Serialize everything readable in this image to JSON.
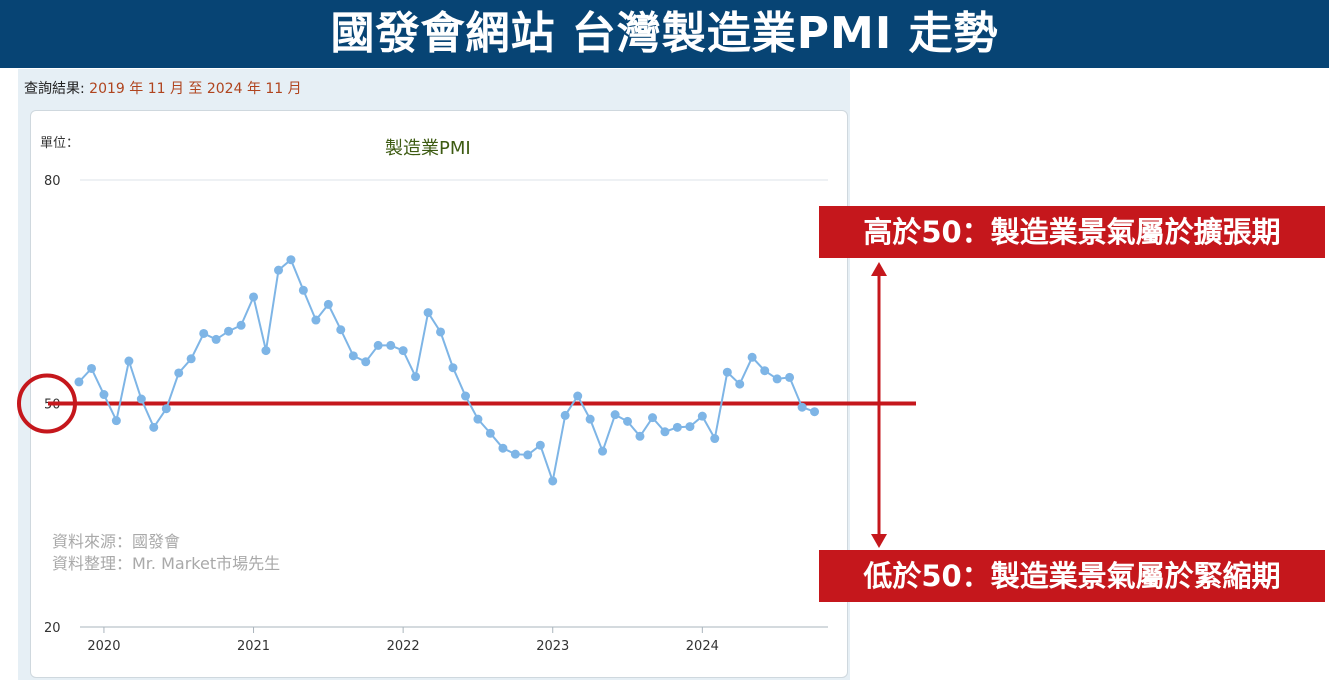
{
  "banner": {
    "title": "國發會網站  台灣製造業PMI 走勢"
  },
  "query": {
    "label": "查詢結果:",
    "value": "2019 年 11 月 至 2024 年 11 月"
  },
  "unit_label": "單位：",
  "source": {
    "line1": "資料來源：國發會",
    "line2": "資料整理：Mr. Market市場先生"
  },
  "notes": {
    "above": "高於50：製造業景氣屬於擴張期",
    "below": "低於50：製造業景氣屬於緊縮期"
  },
  "colors": {
    "banner": "#074474",
    "series": "#7eb5e6",
    "highlight": "#c5171c"
  },
  "chart_data": {
    "type": "line",
    "title": "製造業PMI",
    "ylim": [
      20,
      80
    ],
    "yticks": [
      {
        "value": 80,
        "label": "80"
      },
      {
        "value": 50,
        "label": "50"
      },
      {
        "value": 20,
        "label": "20"
      }
    ],
    "xlim": [
      2019.84,
      2024.84
    ],
    "xticks": [
      {
        "value": 2020,
        "label": "2020"
      },
      {
        "value": 2021,
        "label": "2021"
      },
      {
        "value": 2022,
        "label": "2022"
      },
      {
        "value": 2023,
        "label": "2023"
      },
      {
        "value": 2024,
        "label": "2024"
      }
    ],
    "reference_line": 50,
    "grid": true,
    "series": [
      {
        "x": [
          2019.833,
          2019.917,
          2020.0,
          2020.083,
          2020.167,
          2020.25,
          2020.333,
          2020.417,
          2020.5,
          2020.583,
          2020.667,
          2020.75,
          2020.833,
          2020.917,
          2021.0,
          2021.083,
          2021.167,
          2021.25,
          2021.333,
          2021.417,
          2021.5,
          2021.583,
          2021.667,
          2021.75,
          2021.833,
          2021.917,
          2022.0,
          2022.083,
          2022.167,
          2022.25,
          2022.333,
          2022.417,
          2022.5,
          2022.583,
          2022.667,
          2022.75,
          2022.833,
          2022.917,
          2023.0,
          2023.083,
          2023.167,
          2023.25,
          2023.333,
          2023.417,
          2023.5,
          2023.583,
          2023.667,
          2023.75,
          2023.833,
          2023.917,
          2024.0,
          2024.083,
          2024.167,
          2024.25,
          2024.333,
          2024.417,
          2024.5,
          2024.583,
          2024.667,
          2024.75
        ],
        "values": [
          52.9,
          54.7,
          51.2,
          47.7,
          55.7,
          50.6,
          46.8,
          49.3,
          54.1,
          56.0,
          59.4,
          58.6,
          59.7,
          60.5,
          64.3,
          57.1,
          67.9,
          69.3,
          65.2,
          61.2,
          63.3,
          59.9,
          56.4,
          55.6,
          57.8,
          57.8,
          57.1,
          53.6,
          62.2,
          59.6,
          54.8,
          51.0,
          47.9,
          46.0,
          44.0,
          43.2,
          43.1,
          44.4,
          39.6,
          48.4,
          51.0,
          47.9,
          43.6,
          48.5,
          47.6,
          45.6,
          48.1,
          46.2,
          46.8,
          46.9,
          48.3,
          45.3,
          54.2,
          52.6,
          56.2,
          54.4,
          53.3,
          53.5,
          49.5,
          48.9
        ]
      }
    ]
  }
}
